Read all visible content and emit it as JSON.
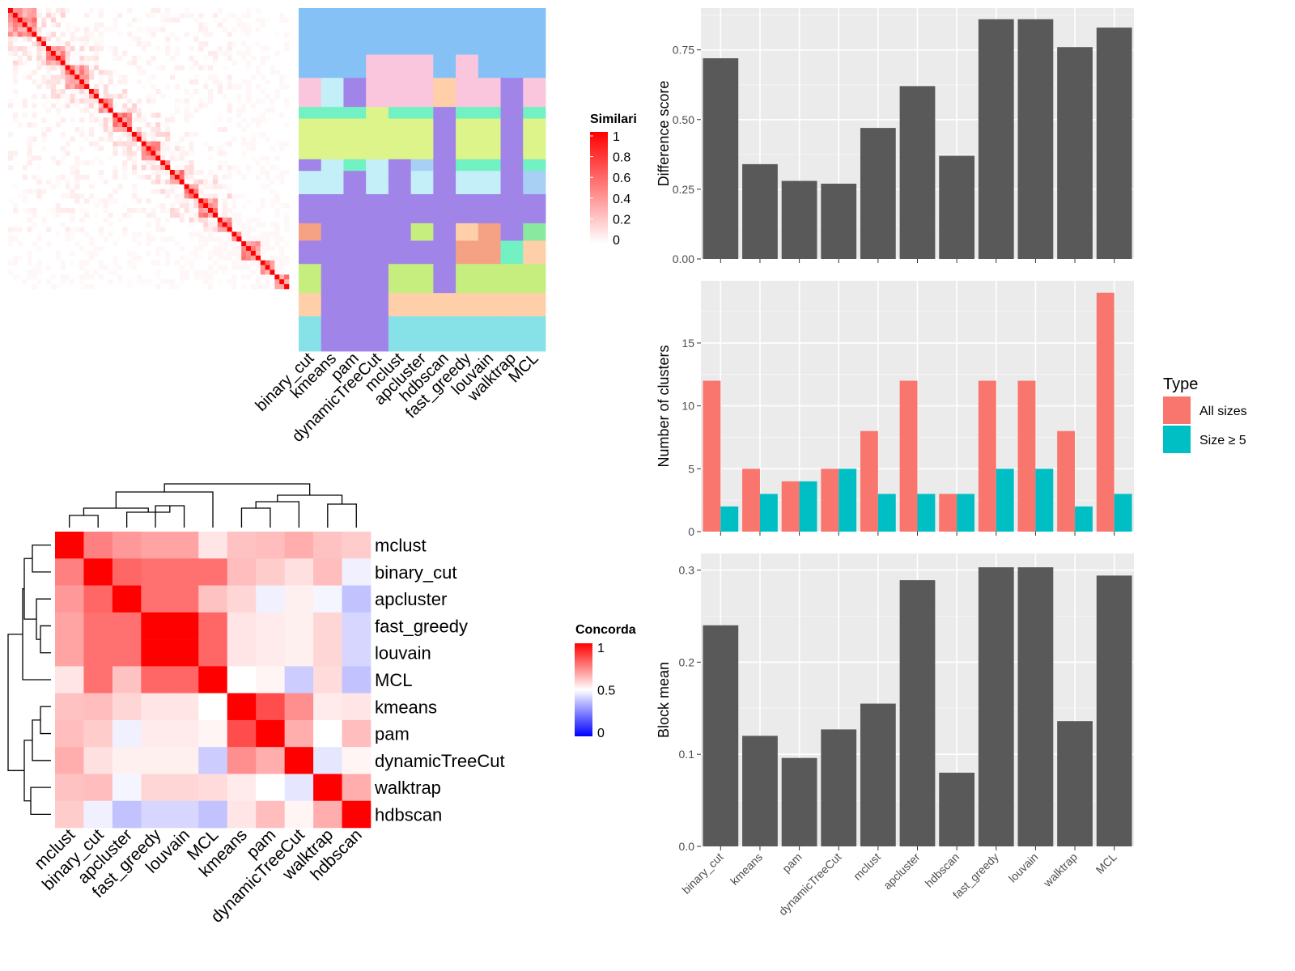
{
  "chart_data": [
    {
      "type": "heatmap",
      "title": "",
      "legend_title": "Similarity",
      "legend_ticks": [
        "1",
        "0.8",
        "0.6",
        "0.4",
        "0.2",
        "0"
      ],
      "methods": [
        "binary_cut",
        "kmeans",
        "pam",
        "dynamicTreeCut",
        "mclust",
        "apcluster",
        "hdbscan",
        "fast_greedy",
        "louvain",
        "walktrap",
        "MCL"
      ]
    },
    {
      "type": "heatmap",
      "title": "",
      "legend_title": "Concordance",
      "legend_ticks": [
        "1",
        "0.5",
        "0"
      ],
      "row_labels": [
        "mclust",
        "binary_cut",
        "apcluster",
        "fast_greedy",
        "louvain",
        "MCL",
        "kmeans",
        "pam",
        "dynamicTreeCut",
        "walktrap",
        "hdbscan"
      ],
      "col_labels": [
        "mclust",
        "binary_cut",
        "apcluster",
        "fast_greedy",
        "louvain",
        "MCL",
        "kmeans",
        "pam",
        "dynamicTreeCut",
        "walktrap",
        "hdbscan"
      ],
      "values": [
        [
          1.0,
          0.75,
          0.7,
          0.68,
          0.68,
          0.55,
          0.62,
          0.63,
          0.66,
          0.62,
          0.6
        ],
        [
          0.75,
          1.0,
          0.8,
          0.78,
          0.78,
          0.78,
          0.63,
          0.6,
          0.56,
          0.63,
          0.47
        ],
        [
          0.7,
          0.8,
          1.0,
          0.78,
          0.78,
          0.62,
          0.58,
          0.47,
          0.53,
          0.48,
          0.38
        ],
        [
          0.68,
          0.78,
          0.78,
          1.0,
          1.0,
          0.8,
          0.55,
          0.54,
          0.53,
          0.58,
          0.42
        ],
        [
          0.68,
          0.78,
          0.78,
          1.0,
          1.0,
          0.8,
          0.55,
          0.54,
          0.53,
          0.58,
          0.42
        ],
        [
          0.55,
          0.78,
          0.62,
          0.8,
          0.8,
          1.0,
          0.5,
          0.52,
          0.4,
          0.57,
          0.38
        ],
        [
          0.62,
          0.63,
          0.58,
          0.55,
          0.55,
          0.5,
          1.0,
          0.85,
          0.72,
          0.54,
          0.55
        ],
        [
          0.63,
          0.6,
          0.47,
          0.54,
          0.54,
          0.52,
          0.85,
          1.0,
          0.66,
          0.5,
          0.63
        ],
        [
          0.66,
          0.56,
          0.53,
          0.53,
          0.53,
          0.4,
          0.72,
          0.66,
          1.0,
          0.45,
          0.52
        ],
        [
          0.62,
          0.63,
          0.48,
          0.58,
          0.58,
          0.57,
          0.54,
          0.5,
          0.45,
          1.0,
          0.66
        ],
        [
          0.6,
          0.47,
          0.38,
          0.42,
          0.42,
          0.38,
          0.55,
          0.63,
          0.52,
          0.66,
          1.0
        ]
      ]
    },
    {
      "type": "bar",
      "title": "",
      "xlabel": "",
      "ylabel": "Difference score",
      "categories": [
        "binary_cut",
        "kmeans",
        "pam",
        "dynamicTreeCut",
        "mclust",
        "apcluster",
        "hdbscan",
        "fast_greedy",
        "louvain",
        "walktrap",
        "MCL"
      ],
      "values": [
        0.72,
        0.34,
        0.28,
        0.27,
        0.47,
        0.62,
        0.37,
        0.86,
        0.86,
        0.76,
        0.83
      ],
      "ylim": [
        0,
        0.9
      ],
      "yticks": [
        "0.00",
        "0.25",
        "0.50",
        "0.75"
      ],
      "yticks_values": [
        0,
        0.25,
        0.5,
        0.75
      ],
      "grid": true
    },
    {
      "type": "bar",
      "title": "",
      "xlabel": "",
      "ylabel": "Number of clusters",
      "categories": [
        "binary_cut",
        "kmeans",
        "pam",
        "dynamicTreeCut",
        "mclust",
        "apcluster",
        "hdbscan",
        "fast_greedy",
        "louvain",
        "walktrap",
        "MCL"
      ],
      "legend_title": "Type",
      "legend_placement": "right",
      "series": [
        {
          "name": "All sizes",
          "color": "#F8766D",
          "values": [
            12,
            5,
            4,
            5,
            8,
            12,
            3,
            12,
            12,
            8,
            19
          ]
        },
        {
          "name": "Size ≥ 5",
          "color": "#00BFC4",
          "values": [
            2,
            3,
            4,
            5,
            3,
            3,
            3,
            5,
            5,
            2,
            3
          ]
        }
      ],
      "ylim": [
        0,
        19.95
      ],
      "yticks": [
        "0",
        "5",
        "10",
        "15"
      ],
      "yticks_values": [
        0,
        5,
        10,
        15
      ],
      "grid": true
    },
    {
      "type": "bar",
      "title": "",
      "xlabel": "",
      "ylabel": "Block mean",
      "categories": [
        "binary_cut",
        "kmeans",
        "pam",
        "dynamicTreeCut",
        "mclust",
        "apcluster",
        "hdbscan",
        "fast_greedy",
        "louvain",
        "walktrap",
        "MCL"
      ],
      "values": [
        0.24,
        0.12,
        0.096,
        0.127,
        0.155,
        0.289,
        0.08,
        0.303,
        0.303,
        0.136,
        0.294
      ],
      "ylim": [
        0,
        0.318
      ],
      "yticks": [
        "0.0",
        "0.1",
        "0.2",
        "0.3"
      ],
      "yticks_values": [
        0,
        0.1,
        0.2,
        0.3
      ],
      "grid": true
    }
  ]
}
